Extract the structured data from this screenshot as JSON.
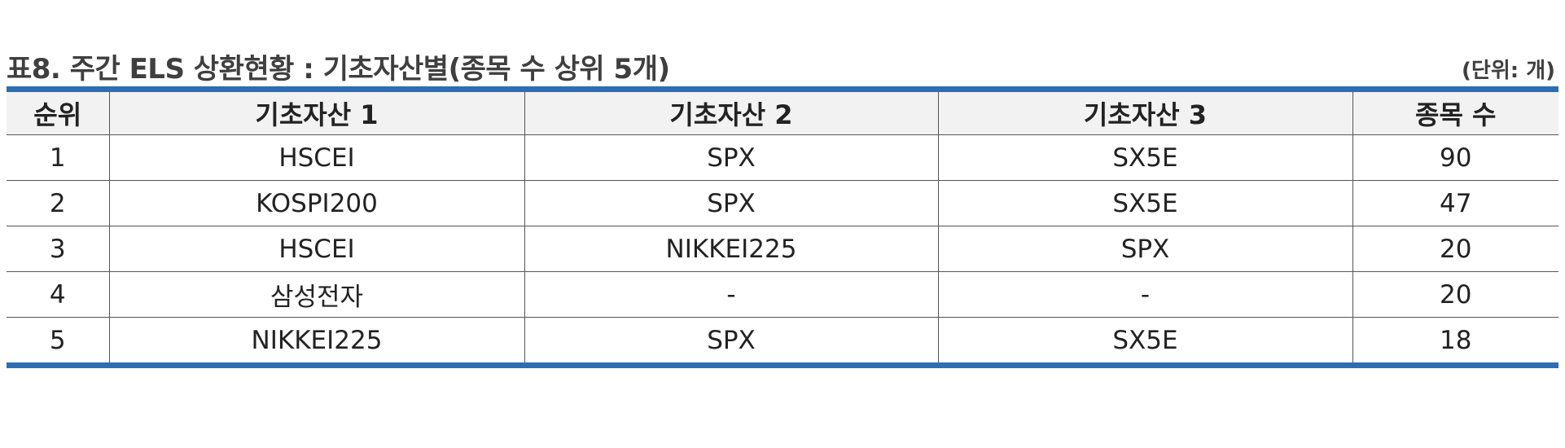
{
  "title": "표8. 주간 ELS 상환현황 : 기초자산별(종목 수 상위 5개)",
  "unit": "(단위: 개)",
  "columns": [
    "순위",
    "기초자산 1",
    "기초자산 2",
    "기초자산 3",
    "종목 수"
  ],
  "rows": [
    {
      "rank": "1",
      "asset1": "HSCEI",
      "asset2": "SPX",
      "asset3": "SX5E",
      "count": "90"
    },
    {
      "rank": "2",
      "asset1": "KOSPI200",
      "asset2": "SPX",
      "asset3": "SX5E",
      "count": "47"
    },
    {
      "rank": "3",
      "asset1": "HSCEI",
      "asset2": "NIKKEI225",
      "asset3": "SPX",
      "count": "20"
    },
    {
      "rank": "4",
      "asset1": "삼성전자",
      "asset2": "-",
      "asset3": "-",
      "count": "20"
    },
    {
      "rank": "5",
      "asset1": "NIKKEI225",
      "asset2": "SPX",
      "asset3": "SX5E",
      "count": "18"
    }
  ],
  "colors": {
    "rule": "#2e6db1",
    "header_bg": "#f2f2f2",
    "title": "#3f3f3f"
  }
}
